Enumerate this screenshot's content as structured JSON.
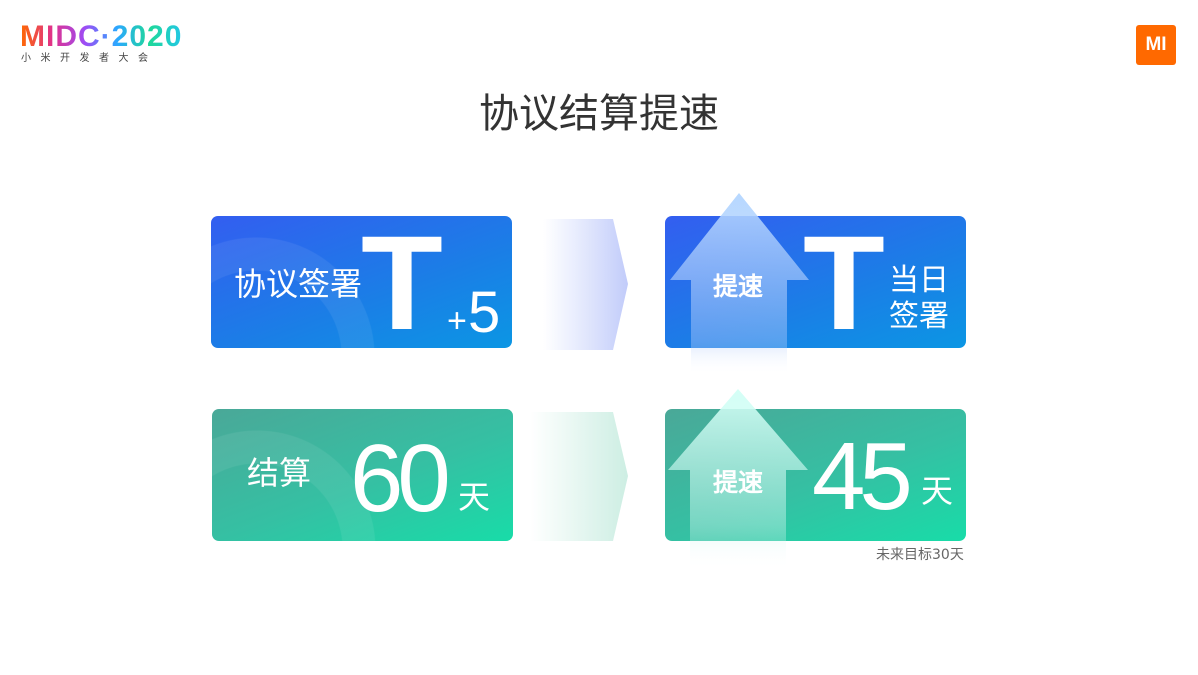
{
  "header": {
    "logo_text": "MIDC·2020",
    "logo_subtitle": "小米开发者大会",
    "brand_logo": "MI"
  },
  "title": "协议结算提速",
  "rows": [
    {
      "before": {
        "label": "协议签署",
        "big": "T",
        "suffix_plus": "+",
        "suffix": "5"
      },
      "after": {
        "badge": "提速",
        "big": "T",
        "label_line1": "当日",
        "label_line2": "签署"
      }
    },
    {
      "before": {
        "label": "结算",
        "big": "60",
        "unit": "天"
      },
      "after": {
        "badge": "提速",
        "big": "45",
        "unit": "天",
        "note": "未来目标30天"
      }
    }
  ],
  "colors": {
    "blue_start": "#335ef0",
    "blue_end": "#0b96e4",
    "green_start": "#4aa898",
    "green_end": "#18dca8",
    "brand": "#ff6900"
  }
}
